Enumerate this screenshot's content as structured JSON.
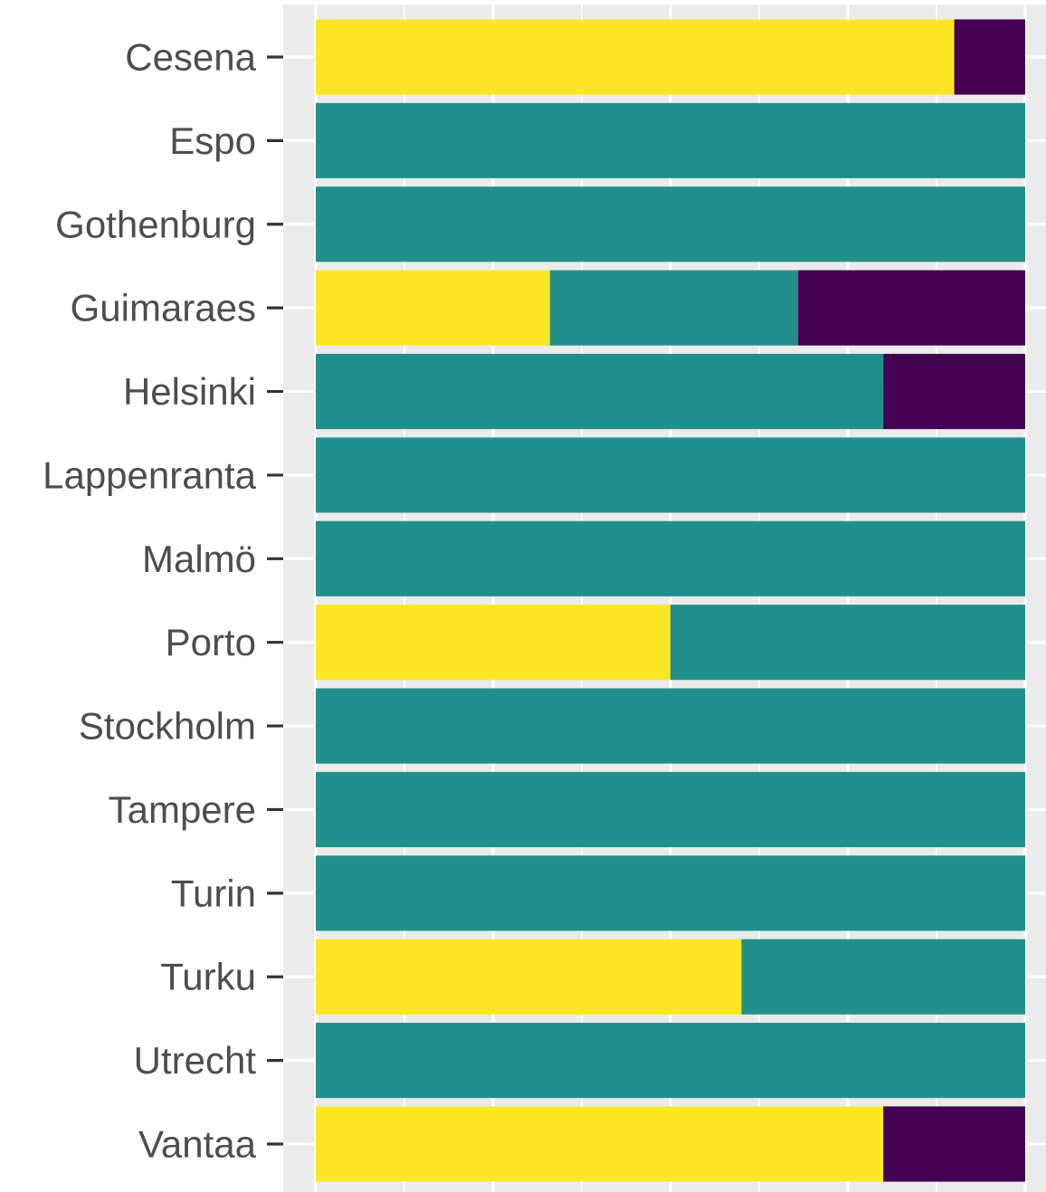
{
  "chart_data": {
    "type": "bar",
    "orientation": "horizontal",
    "stacked": true,
    "normalized": true,
    "title": "",
    "xlabel": "",
    "ylabel": "",
    "xlim": [
      0,
      1
    ],
    "grid": true,
    "legend": "none",
    "categories": [
      "Cesena",
      "Espo",
      "Gothenburg",
      "Guimaraes",
      "Helsinki",
      "Lappenranta",
      "Malmö",
      "Porto",
      "Stockholm",
      "Tampere",
      "Turin",
      "Turku",
      "Utrecht",
      "Vantaa"
    ],
    "series": [
      {
        "color": "#FDE725",
        "values": [
          0.9,
          0,
          0,
          0.33,
          0,
          0,
          0,
          0.5,
          0,
          0,
          0,
          0.6,
          0,
          0.8
        ]
      },
      {
        "color": "#21908C",
        "values": [
          0,
          1,
          1,
          0.35,
          0.8,
          1,
          1,
          0.5,
          1,
          1,
          1,
          0.4,
          1,
          0
        ]
      },
      {
        "color": "#440154",
        "values": [
          0.1,
          0,
          0,
          0.32,
          0.2,
          0,
          0,
          0,
          0,
          0,
          0,
          0,
          0,
          0.2
        ]
      }
    ]
  }
}
